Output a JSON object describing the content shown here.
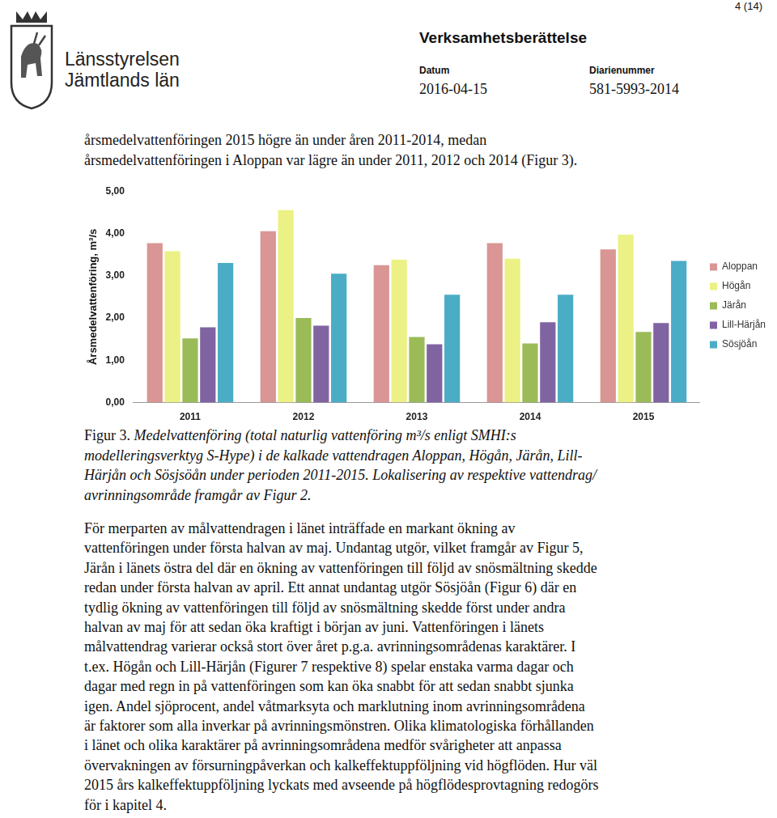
{
  "header": {
    "page_number": "4 (14)",
    "organization": [
      "Länsstyrelsen",
      "Jämtlands län"
    ],
    "doc_type": "Verksamhetsberättelse",
    "date_label": "Datum",
    "date": "2016-04-15",
    "ref_label": "Diarienummer",
    "ref": "581-5993-2014"
  },
  "intro": [
    "årsmedelvattenföringen 2015 högre än under åren 2011-2014, medan",
    "årsmedelvattenföringen i Aloppan var lägre än under 2011, 2012 och 2014 (Figur 3)."
  ],
  "chart_data": {
    "type": "bar",
    "y_label": "Årsmedelvattenföring, m³/s",
    "categories": [
      "2011",
      "2012",
      "2013",
      "2014",
      "2015"
    ],
    "series": [
      {
        "name": "Aloppan",
        "color": "#d99694",
        "values": [
          3.77,
          4.05,
          3.25,
          3.77,
          3.62
        ]
      },
      {
        "name": "Högån",
        "color": "#ebf184",
        "values": [
          3.58,
          4.55,
          3.38,
          3.4,
          3.97
        ]
      },
      {
        "name": "Järån",
        "color": "#9bbb59",
        "values": [
          1.52,
          2.0,
          1.55,
          1.4,
          1.67
        ]
      },
      {
        "name": "Lill-Härjån",
        "color": "#8064a2",
        "values": [
          1.78,
          1.82,
          1.38,
          1.9,
          1.88
        ]
      },
      {
        "name": "Sösjöån",
        "color": "#4bacc6",
        "values": [
          3.3,
          3.05,
          2.55,
          2.55,
          3.35
        ]
      }
    ],
    "ylim": [
      0,
      5
    ],
    "yticks": [
      {
        "value": 0,
        "label": "0,00"
      },
      {
        "value": 1,
        "label": "1,00"
      },
      {
        "value": 2,
        "label": "2,00"
      },
      {
        "value": 3,
        "label": "3,00"
      },
      {
        "value": 4,
        "label": "4,00"
      },
      {
        "value": 5,
        "label": "5,00"
      }
    ],
    "grid": false,
    "legend": "right"
  },
  "caption": {
    "label": "Figur 3.",
    "lines": [
      "Medelvattenföring (total naturlig vattenföring m³/s enligt SMHI:s",
      "modelleringsverktyg S-Hype) i de kalkade vattendragen Aloppan, Högån, Järån, Lill-",
      "Härjån och Sösjsöån under perioden 2011-2015. Lokalisering av respektive vattendrag/",
      "avrinningsområde framgår av Figur 2."
    ]
  },
  "body": [
    "För merparten av målvattendragen i länet inträffade en markant ökning av",
    "vattenföringen under första halvan av maj. Undantag utgör, vilket framgår av Figur 5,",
    "Järån i länets östra del där en ökning av vattenföringen till följd av snösmältning skedde",
    "redan under första halvan av april. Ett annat undantag utgör Sösjöån (Figur 6) där en",
    "tydlig ökning av vattenföringen till följd av snösmältning skedde först under andra",
    "halvan av maj för att sedan öka kraftigt i början av juni. Vattenföringen i länets",
    "målvattendrag varierar också stort över året p.g.a. avrinningsområdenas karaktärer. I",
    "t.ex. Högån och Lill-Härjån (Figurer 7 respektive 8) spelar enstaka varma dagar och",
    "dagar med regn in på vattenföringen som kan öka snabbt för att sedan snabbt sjunka",
    "igen. Andel sjöprocent, andel våtmarksyta och marklutning inom avrinningsområdena",
    "är faktorer som alla inverkar på avrinningsmönstren. Olika klimatologiska förhållanden",
    "i länet och olika karaktärer på avrinningsområdena medför svårigheter att anpassa",
    "övervakningen av försurningpåverkan och kalkeffektuppföljning vid högflöden. Hur väl",
    "2015 års kalkeffektuppföljning lyckats med avseende på högflödesprovtagning redogörs",
    "för i kapitel 4."
  ]
}
